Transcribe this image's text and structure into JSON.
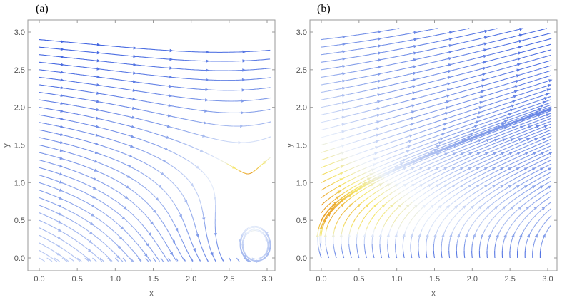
{
  "panels": [
    {
      "label": "(a)"
    },
    {
      "label": "(b)"
    }
  ],
  "chart_data": [
    {
      "type": "streamplot",
      "panel": "(a)",
      "xlabel": "x",
      "ylabel": "y",
      "xlim": [
        -0.1,
        3.1
      ],
      "ylim": [
        -0.1,
        3.1
      ],
      "xticks": [
        "0.0",
        "0.5",
        "1.0",
        "1.5",
        "2.0",
        "2.5",
        "3.0"
      ],
      "yticks": [
        "0.0",
        "0.5",
        "1.0",
        "1.5",
        "2.0",
        "2.5",
        "3.0"
      ],
      "colors": {
        "low": "#3b5fe0",
        "mid": "#e9f0fb",
        "high": "#e89a20"
      },
      "field": "curving toward the x-axis; near-semicircular streamlines near (2.9, 0)"
    },
    {
      "type": "streamplot",
      "panel": "(b)",
      "xlabel": "x",
      "ylabel": "y",
      "xlim": [
        -0.1,
        3.1
      ],
      "ylim": [
        -0.1,
        3.1
      ],
      "xticks": [
        "0.0",
        "0.5",
        "1.0",
        "1.5",
        "2.0",
        "2.5",
        "3.0"
      ],
      "yticks": [
        "0.0",
        "0.5",
        "1.0",
        "1.5",
        "2.0",
        "2.5",
        "3.0"
      ],
      "colors": {
        "low": "#3b5fe0",
        "mid": "#e9f0fb",
        "high": "#e89a20"
      },
      "field": "diagonal streamlines curving upward from the x-axis"
    }
  ]
}
